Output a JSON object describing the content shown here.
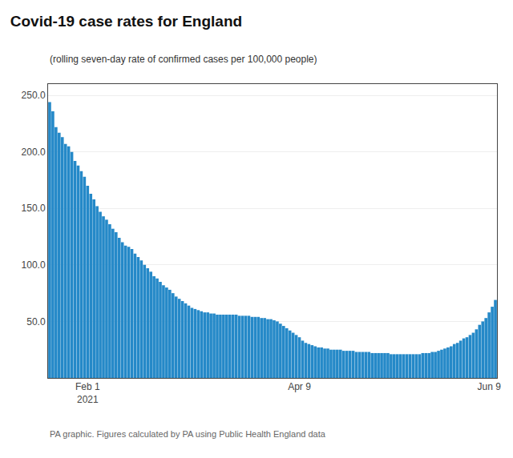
{
  "chart_data": {
    "type": "bar",
    "title": "Covid-19 case rates for England",
    "subtitle": "(rolling seven-day rate of confirmed cases per 100,000 people)",
    "annotations": [
      "PA graphic. Figures calculated by PA using Public Health England data"
    ],
    "categories": [
      null,
      null,
      null,
      null,
      null,
      null,
      null,
      null,
      null,
      null,
      null,
      null,
      "Feb 1\n2021",
      null,
      null,
      null,
      null,
      null,
      null,
      null,
      null,
      null,
      null,
      null,
      null,
      null,
      null,
      null,
      null,
      null,
      null,
      null,
      null,
      null,
      null,
      null,
      null,
      null,
      null,
      null,
      null,
      null,
      null,
      null,
      null,
      null,
      null,
      null,
      null,
      null,
      null,
      null,
      null,
      null,
      null,
      null,
      null,
      null,
      null,
      null,
      null,
      null,
      null,
      null,
      null,
      null,
      null,
      null,
      null,
      null,
      null,
      null,
      null,
      null,
      null,
      null,
      null,
      null,
      null,
      "Apr 9",
      null,
      null,
      null,
      null,
      null,
      null,
      null,
      null,
      null,
      null,
      null,
      null,
      null,
      null,
      null,
      null,
      null,
      null,
      null,
      null,
      null,
      null,
      null,
      null,
      null,
      null,
      null,
      null,
      null,
      null,
      null,
      null,
      null,
      null,
      null,
      null,
      null,
      null,
      null,
      null,
      null,
      null,
      null,
      null,
      null,
      null,
      null,
      null,
      null,
      null,
      null,
      null,
      null,
      null,
      null,
      null,
      null,
      null,
      null,
      "Jun 9",
      null,
      null
    ],
    "values": [
      244,
      236,
      222,
      217,
      213,
      207,
      205,
      200,
      192,
      188,
      183,
      178,
      170,
      163,
      158,
      152,
      147,
      143,
      140,
      136,
      132,
      129,
      124,
      120,
      117,
      116,
      114,
      110,
      107,
      104,
      100,
      97,
      94,
      90,
      88,
      85,
      82,
      80,
      78,
      75,
      72,
      70,
      68,
      66,
      64,
      62,
      61,
      60,
      59,
      58,
      58,
      57,
      57,
      56,
      56,
      56,
      56,
      56,
      56,
      56,
      55,
      55,
      55,
      55,
      54,
      54,
      54,
      53,
      53,
      52,
      52,
      51,
      50,
      48,
      46,
      44,
      42,
      40,
      38,
      36,
      33,
      31,
      30,
      29,
      28,
      27,
      27,
      26,
      26,
      25,
      25,
      25,
      25,
      24,
      24,
      24,
      24,
      23,
      23,
      23,
      23,
      23,
      22,
      22,
      22,
      22,
      22,
      22,
      21,
      21,
      21,
      21,
      21,
      21,
      21,
      21,
      21,
      21,
      22,
      22,
      22,
      23,
      23,
      24,
      25,
      26,
      27,
      28,
      30,
      31,
      33,
      35,
      36,
      38,
      40,
      43,
      47,
      50,
      53,
      58,
      63,
      69
    ],
    "color": "#2589c8",
    "ylim": [
      0,
      260
    ],
    "yticks": [
      {
        "value": 50,
        "label": "50.0"
      },
      {
        "value": 100,
        "label": "100.0"
      },
      {
        "value": 150,
        "label": "150.0"
      },
      {
        "value": 200,
        "label": "200.0"
      },
      {
        "value": 250,
        "label": "250.0"
      }
    ],
    "grid": true
  }
}
